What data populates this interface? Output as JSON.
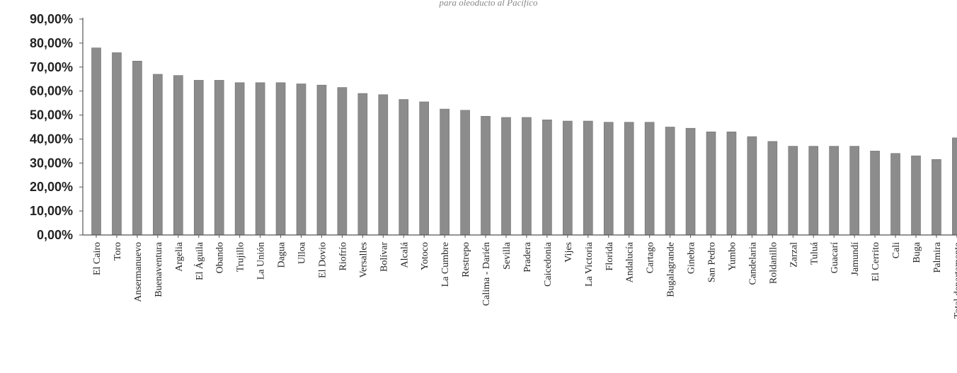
{
  "caption": "para oleoducto al Pacífico",
  "chart_data": {
    "type": "bar",
    "title": "",
    "xlabel": "",
    "ylabel": "",
    "ylim": [
      0,
      90
    ],
    "yticks": [
      "0,00%",
      "10,00%",
      "20,00%",
      "30,00%",
      "40,00%",
      "50,00%",
      "60,00%",
      "70,00%",
      "80,00%",
      "90,00%"
    ],
    "grid": false,
    "legend": "none",
    "bar_color": "#8c8c8c",
    "categories": [
      "El Cairo",
      "Toro",
      "Ansermanuevo",
      "Buenaventura",
      "Argelia",
      "El Águila",
      "Obando",
      "Trujillo",
      "La Unión",
      "Dagua",
      "Ulloa",
      "El Dovio",
      "Riofrío",
      "Versalles",
      "Bolívar",
      "Alcalá",
      "Yotoco",
      "La Cumbre",
      "Restrepo",
      "Calima - Darién",
      "Sevilla",
      "Pradera",
      "Caicedonia",
      "Vijes",
      "La Victoria",
      "Florida",
      "Andalucía",
      "Cartago",
      "Bugalagrande",
      "Ginebra",
      "San Pedro",
      "Yumbo",
      "Candelaria",
      "Roldanillo",
      "Zarzal",
      "Tuluá",
      "Guacarí",
      "Jamundí",
      "El Cerrito",
      "Cali",
      "Buga",
      "Palmira",
      "Total departamento"
    ],
    "values": [
      78,
      76,
      72.5,
      67,
      66.5,
      64.5,
      64.5,
      63.5,
      63.5,
      63.5,
      63,
      62.5,
      61.5,
      59,
      58.5,
      56.5,
      55.5,
      52.5,
      52,
      49.5,
      49,
      49,
      48,
      47.5,
      47.5,
      47,
      47,
      47,
      45,
      44.5,
      43,
      43,
      41,
      39,
      37,
      37,
      37,
      37,
      35,
      34,
      33,
      31.5,
      40.5
    ]
  }
}
